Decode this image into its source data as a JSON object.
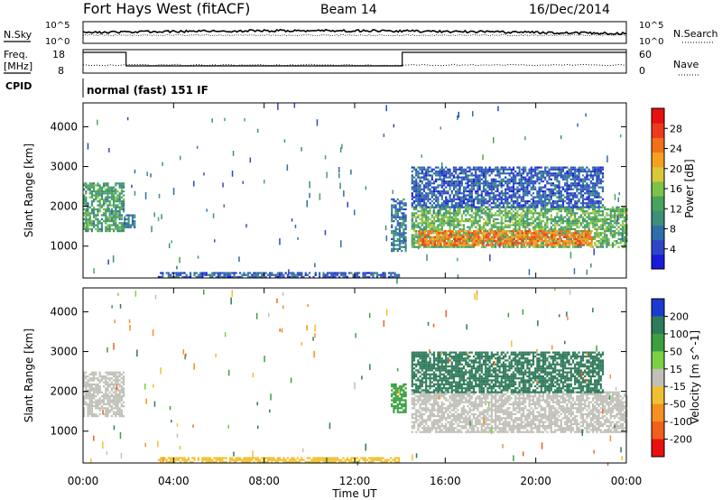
{
  "header": {
    "station": "Fort Hays West (fitACF)",
    "beam": "Beam 14",
    "date": "16/Dec/2014"
  },
  "panels": {
    "nsky": {
      "label": "N.Sky",
      "tick_top": "10^5",
      "tick_bottom": "10^0"
    },
    "nsearch": {
      "label": "N.Search",
      "tick_top": "10^5",
      "tick_bottom": "10^0"
    },
    "freq": {
      "label": "Freq.",
      "unit": "[MHz]",
      "tick_top": "18",
      "tick_bottom": "8",
      "values_mhz": [
        [
          0,
          18
        ],
        [
          1.9,
          18
        ],
        [
          1.9,
          10.5
        ],
        [
          14.1,
          10.5
        ],
        [
          14.1,
          18
        ],
        [
          24,
          18
        ]
      ]
    },
    "nave": {
      "label": "Nave",
      "tick_top": "60",
      "tick_bottom": "0"
    },
    "cpid": {
      "label": "CPID",
      "mode": "normal (fast) 151 IF"
    }
  },
  "time_axis": {
    "label": "Time UT",
    "ticks": [
      "00:00",
      "04:00",
      "08:00",
      "12:00",
      "16:00",
      "20:00",
      "00:00"
    ]
  },
  "chart_data": [
    {
      "type": "heatmap",
      "name": "Power",
      "xlabel": "Time UT",
      "ylabel": "Slant Range [km]",
      "xlim": [
        0,
        24
      ],
      "ylim": [
        200,
        4600
      ],
      "yticks": [
        "1000",
        "2000",
        "3000",
        "4000"
      ],
      "colorbar": {
        "label": "Power [dB]",
        "ticks": [
          "4",
          "8",
          "12",
          "16",
          "20",
          "24",
          "28"
        ],
        "range": [
          0,
          32
        ]
      },
      "regions": [
        {
          "t": [
            0.0,
            1.8
          ],
          "range_km": [
            1400,
            2600
          ],
          "value_db": 12
        },
        {
          "t": [
            1.8,
            2.3
          ],
          "range_km": [
            1500,
            1800
          ],
          "value_db": 8
        },
        {
          "t": [
            3.3,
            14.0
          ],
          "range_km": [
            250,
            350
          ],
          "value_db": 6
        },
        {
          "t": [
            13.6,
            14.3
          ],
          "range_km": [
            900,
            2200
          ],
          "value_db": 8
        },
        {
          "t": [
            14.5,
            24.0
          ],
          "range_km": [
            1000,
            2000
          ],
          "value_db": 14
        },
        {
          "t": [
            14.8,
            22.5
          ],
          "range_km": [
            1050,
            1400
          ],
          "value_db": 24
        },
        {
          "t": [
            14.5,
            23.0
          ],
          "range_km": [
            2000,
            3000
          ],
          "value_db": 6
        }
      ]
    },
    {
      "type": "heatmap",
      "name": "Velocity",
      "xlabel": "Time UT",
      "ylabel": "Slant Range [km]",
      "xlim": [
        0,
        24
      ],
      "ylim": [
        200,
        4600
      ],
      "yticks": [
        "1000",
        "2000",
        "3000",
        "4000"
      ],
      "colorbar": {
        "label": "Velocity [m s^-1]",
        "ticks": [
          "200",
          "100",
          "50",
          "15",
          "-15",
          "-50",
          "-100",
          "-200"
        ]
      },
      "regions": [
        {
          "t": [
            0.0,
            1.8
          ],
          "range_km": [
            1400,
            2500
          ],
          "value_ms": 0
        },
        {
          "t": [
            3.3,
            14.0
          ],
          "range_km": [
            250,
            350
          ],
          "value_ms": -40
        },
        {
          "t": [
            13.6,
            14.3
          ],
          "range_km": [
            1500,
            2200
          ],
          "value_ms": 40
        },
        {
          "t": [
            14.5,
            24.0
          ],
          "range_km": [
            1000,
            2000
          ],
          "value_ms": 0
        },
        {
          "t": [
            14.5,
            23.0
          ],
          "range_km": [
            2000,
            3000
          ],
          "value_ms": 120
        }
      ]
    }
  ]
}
